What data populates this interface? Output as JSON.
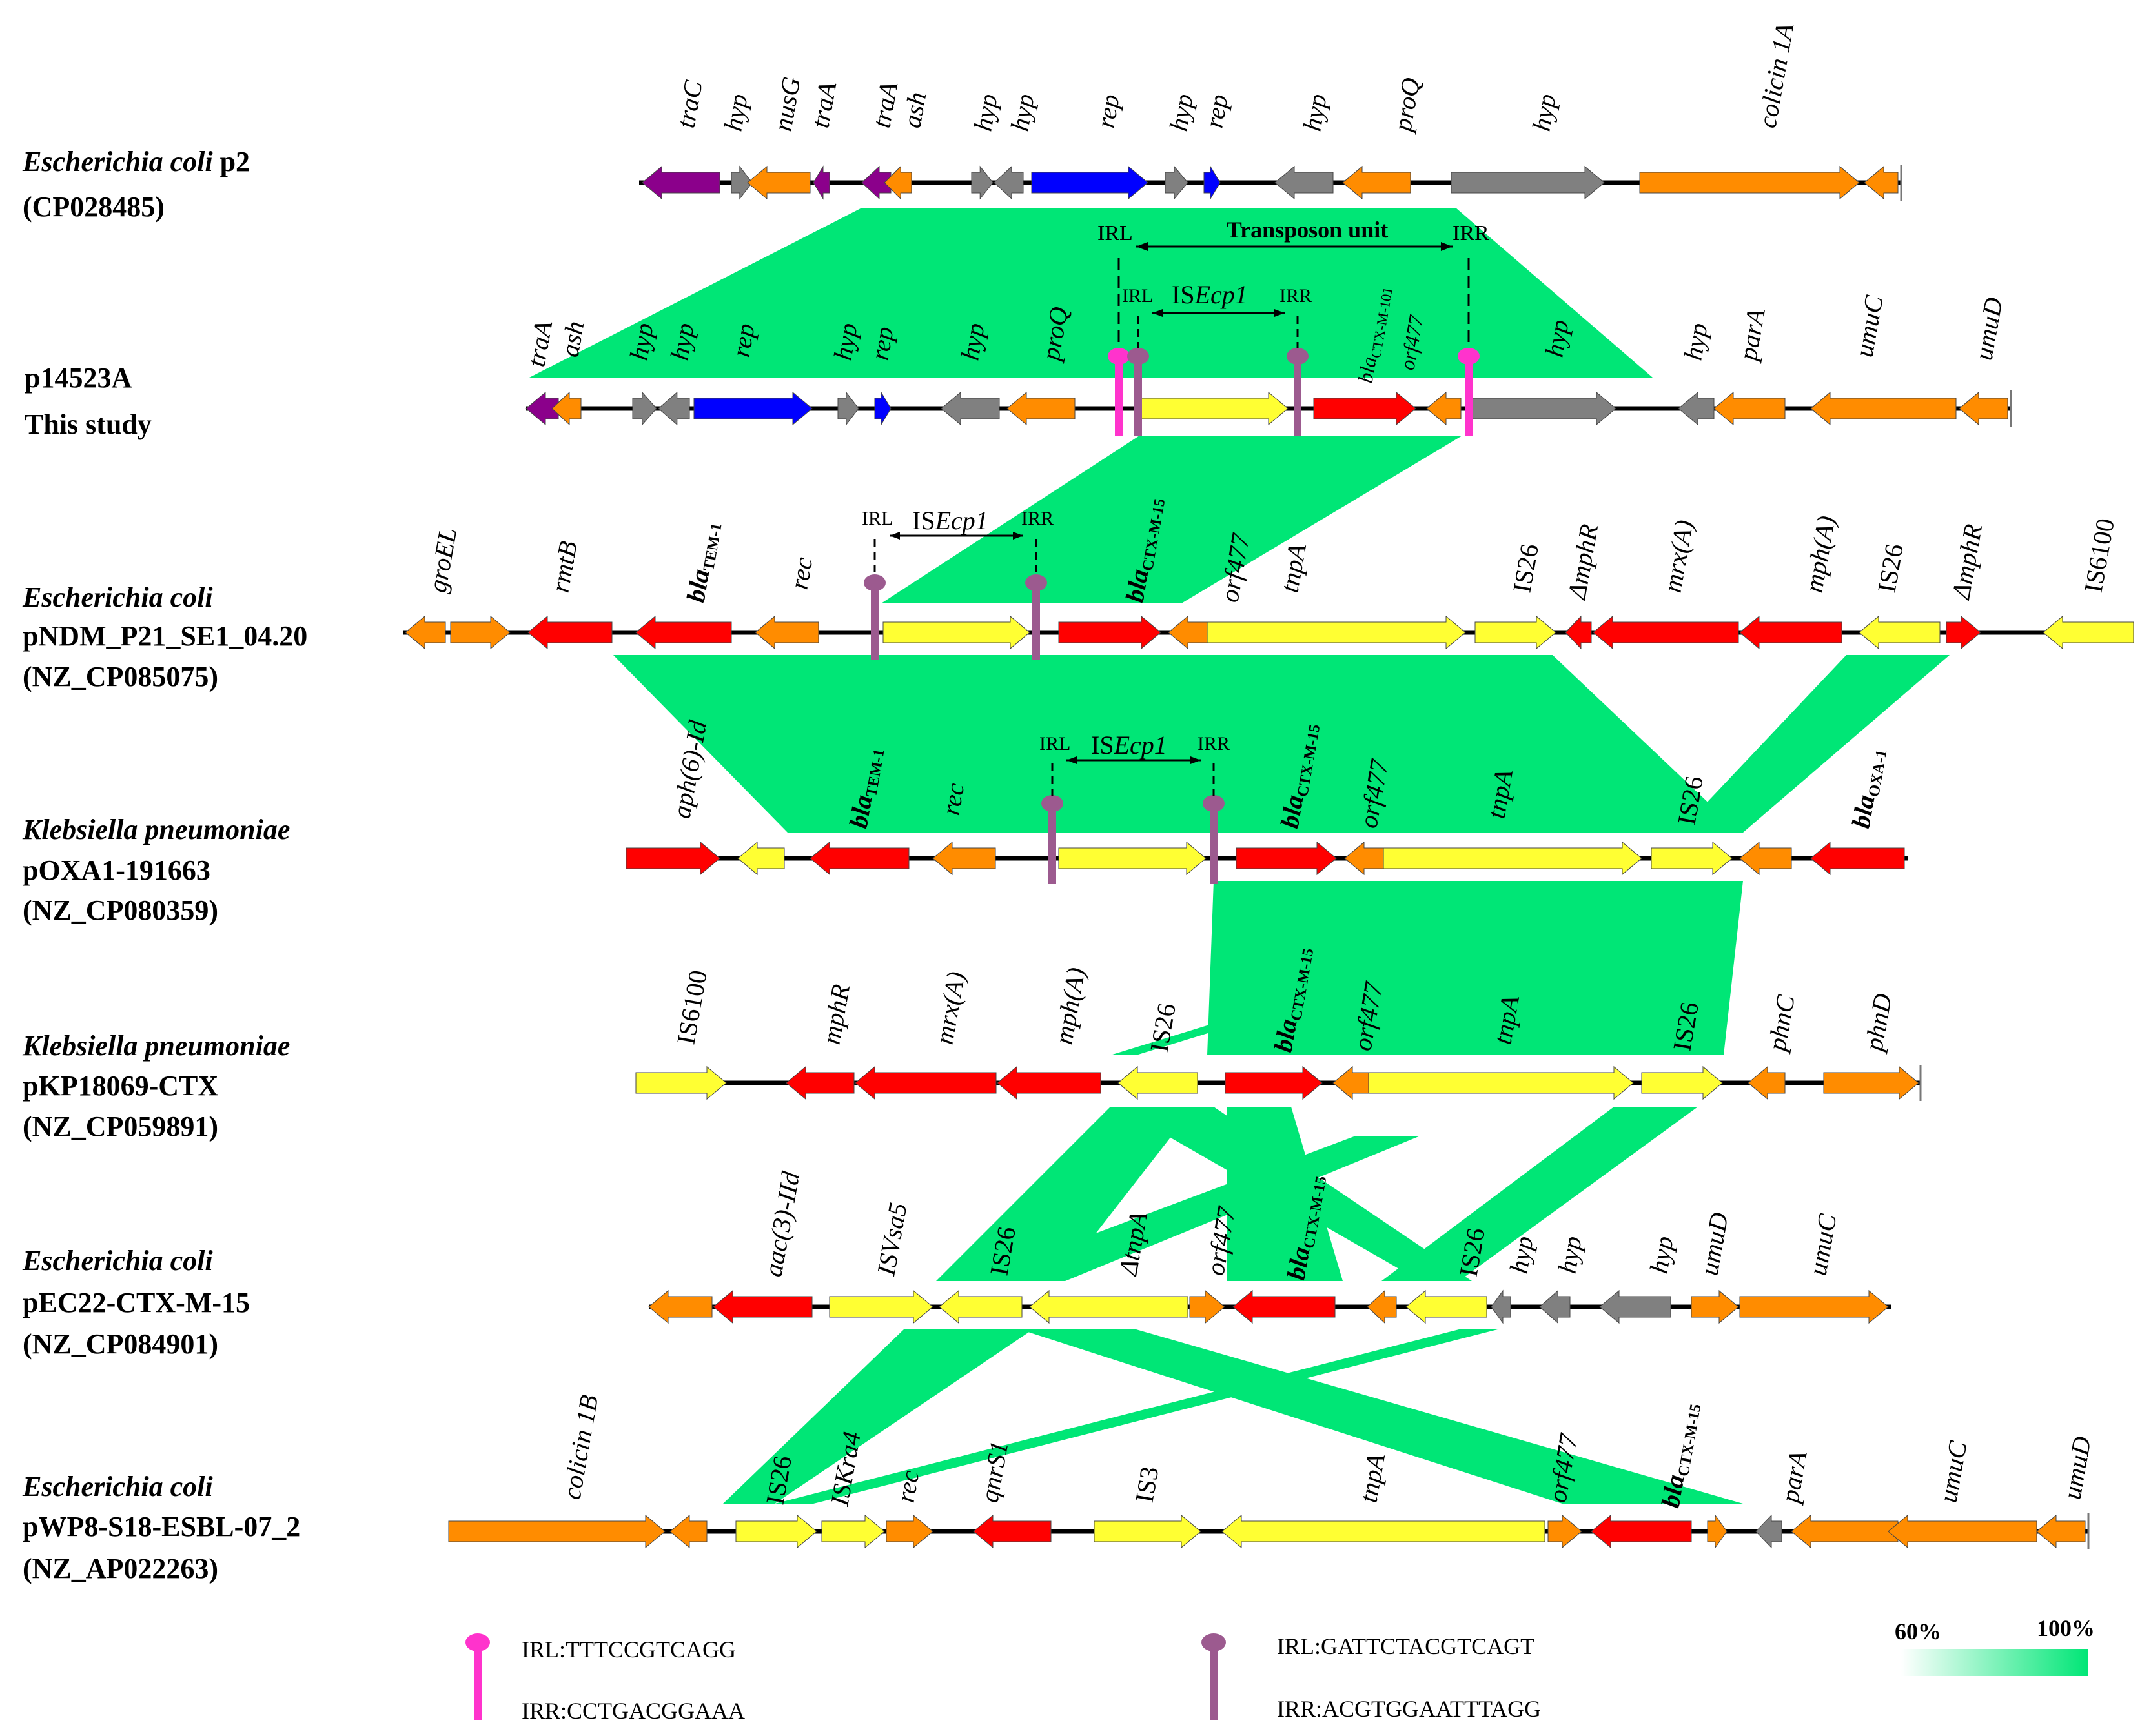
{
  "colors": {
    "orange": "#FF8C00",
    "red": "#FF0000",
    "yellow": "#FFFF33",
    "purple": "#8B008B",
    "gray": "#808080",
    "blue": "#0000FF",
    "green": "#00E676",
    "pink": "#FF33CC",
    "mauve": "#9C5A8F"
  },
  "tracks": [
    {
      "name_line1": "Escherichia coli",
      "name_suffix": " p2",
      "accession": "(CP028485)"
    },
    {
      "name_line1": "p14523A",
      "name_suffix": "",
      "accession": "This study"
    },
    {
      "name_line1": "Escherichia coli",
      "name_suffix": "",
      "name_line2": "pNDM_P21_SE1_04.20",
      "accession": "(NZ_CP085075)"
    },
    {
      "name_line1": "Klebsiella pneumoniae",
      "name_suffix": "",
      "name_line2": "pOXA1-191663",
      "accession": "(NZ_CP080359)"
    },
    {
      "name_line1": "Klebsiella pneumoniae",
      "name_suffix": "",
      "name_line2": "pKP18069-CTX",
      "accession": "(NZ_CP059891)"
    },
    {
      "name_line1": "Escherichia coli",
      "name_suffix": "",
      "name_line2": " pEC22-CTX-M-15",
      "accession": "(NZ_CP084901)"
    },
    {
      "name_line1": "Escherichia coli",
      "name_suffix": "",
      "name_line2": "pWP8-S18-ESBL-07_2",
      "accession": "(NZ_AP022263)"
    }
  ],
  "genes": {
    "t1": [
      "traC",
      "hyp",
      "nusG",
      "traA",
      "traA",
      "ash",
      "hyp",
      "hyp",
      "rep",
      "hyp",
      "rep",
      "hyp",
      "proQ",
      "hyp",
      "colicin 1A"
    ],
    "t2": [
      "traA",
      "ash",
      "hyp",
      "hyp",
      "rep",
      "hyp",
      "rep",
      "hyp",
      "proQ",
      "bla",
      "orf477",
      "hyp",
      "hyp",
      "parA",
      "umuC",
      "umuD"
    ],
    "t3": [
      "groEL",
      "rmtB",
      "bla",
      "rec",
      "bla",
      "orf477",
      "tnpA",
      "IS26",
      "ΔmphR",
      "mrx(A)",
      "mph(A)",
      "IS26",
      "ΔmphR",
      "IS6100"
    ],
    "t4": [
      "aph(6)-Id",
      "bla",
      "rec",
      "bla",
      "orf477",
      "tnpA",
      "IS26",
      "bla"
    ],
    "t5": [
      "IS6100",
      "mphR",
      "mrx(A)",
      "mph(A)",
      "IS26",
      "bla",
      "orf477",
      "tnpA",
      "IS26",
      "phnC",
      "phnD"
    ],
    "t6": [
      "aac(3)-IId",
      "ISVsa5",
      "IS26",
      "ΔtnpA",
      "orf477",
      "bla",
      "IS26",
      "hyp",
      "hyp",
      "hyp",
      "umuD",
      "umuC"
    ],
    "t7": [
      "colicin 1B",
      "IS26",
      "ISKra4",
      "rec",
      "qnrS1",
      "IS3",
      "tnpA",
      "orf477",
      "bla",
      "parA",
      "umuC",
      "umuD"
    ]
  },
  "subscripts": {
    "ctxm101": "CTX-M-101",
    "ctxm15": "CTX-M-15",
    "tem1": "TEM-1",
    "oxa1": "OXA-1"
  },
  "annotations": {
    "transposon_unit": "Transposon unit",
    "irl": "IRL",
    "irr": "IRR",
    "isecp1_prefix": "IS",
    "isecp1_italic": "Ecp1"
  },
  "legend": {
    "pink_irl": "IRL:TTTCCGTCAGG",
    "pink_irr": "IRR:CCTGACGGAAA",
    "mauve_irl": "IRL:GATTCTACGTCAGT",
    "mauve_irr": "IRR:ACGTGGAATTTAGG",
    "scale_low": "60%",
    "scale_high": "100%"
  }
}
